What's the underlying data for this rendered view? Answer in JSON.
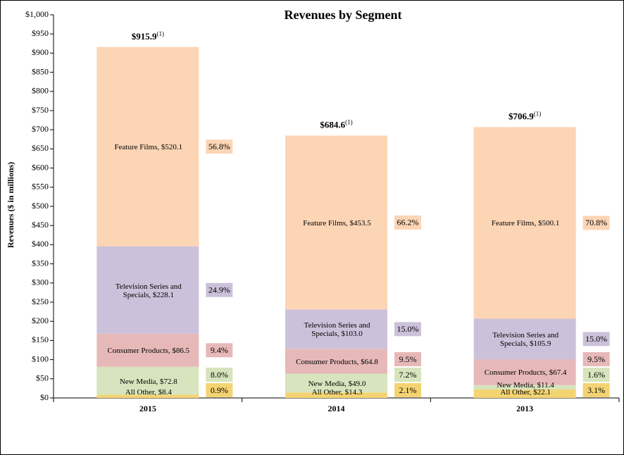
{
  "chart_data": {
    "type": "stacked_bar",
    "title": "Revenues by Segment",
    "ylabel": "Revenues ($ in millions)",
    "categories": [
      "2015",
      "2014",
      "2013"
    ],
    "ylim": [
      0,
      1000
    ],
    "yticks": [
      {
        "value": 0,
        "label": "$0"
      },
      {
        "value": 50,
        "label": "$50"
      },
      {
        "value": 100,
        "label": "$100"
      },
      {
        "value": 150,
        "label": "$150"
      },
      {
        "value": 200,
        "label": "$200"
      },
      {
        "value": 250,
        "label": "$250"
      },
      {
        "value": 300,
        "label": "$300"
      },
      {
        "value": 350,
        "label": "$350"
      },
      {
        "value": 400,
        "label": "$400"
      },
      {
        "value": 450,
        "label": "$450"
      },
      {
        "value": 500,
        "label": "$500"
      },
      {
        "value": 550,
        "label": "$550"
      },
      {
        "value": 600,
        "label": "$600"
      },
      {
        "value": 650,
        "label": "$650"
      },
      {
        "value": 700,
        "label": "$700"
      },
      {
        "value": 750,
        "label": "$750"
      },
      {
        "value": 800,
        "label": "$800"
      },
      {
        "value": 850,
        "label": "$850"
      },
      {
        "value": 900,
        "label": "$900"
      },
      {
        "value": 950,
        "label": "$950"
      },
      {
        "value": 1000,
        "label": "$1,000"
      }
    ],
    "series": [
      {
        "color": "#f4d472",
        "values": [
          8.4,
          14.3,
          22.1
        ],
        "value_labels": [
          "All Other, $8.4",
          "All Other, $14.3",
          "All Other, $22.1"
        ],
        "shares": [
          0.9,
          2.1,
          3.1
        ],
        "share_labels": [
          "0.9%",
          "2.1%",
          "3.1%"
        ]
      },
      {
        "color": "#d7e4bd",
        "values": [
          72.8,
          49.0,
          11.4
        ],
        "value_labels": [
          "New Media, $72.8",
          "New Media, $49.0",
          "New Media, $11.4"
        ],
        "shares": [
          8.0,
          7.2,
          1.6
        ],
        "share_labels": [
          "8.0%",
          "7.2%",
          "1.6%"
        ]
      },
      {
        "color": "#e6b9b8",
        "values": [
          86.5,
          64.8,
          67.4
        ],
        "value_labels": [
          "Consumer Products, $86.5",
          "Consumer Products, $64.8",
          "Consumer Products, $67.4"
        ],
        "shares": [
          9.4,
          9.5,
          9.5
        ],
        "share_labels": [
          "9.4%",
          "9.5%",
          "9.5%"
        ]
      },
      {
        "color": "#ccc1da",
        "values": [
          228.1,
          103.0,
          105.9
        ],
        "value_labels": [
          "Television Series and Specials, $228.1",
          "Television Series and Specials, $103.0",
          "Television Series and Specials, $105.9"
        ],
        "shares": [
          24.9,
          15.0,
          15.0
        ],
        "share_labels": [
          "24.9%",
          "15.0%",
          "15.0%"
        ]
      },
      {
        "color": "#fcd5b5",
        "values": [
          520.1,
          453.5,
          500.1
        ],
        "value_labels": [
          "Feature Films, $520.1",
          "Feature Films, $453.5",
          "Feature Films, $500.1"
        ],
        "shares": [
          56.8,
          66.2,
          70.8
        ],
        "share_labels": [
          "56.8%",
          "66.2%",
          "70.8%"
        ]
      }
    ],
    "totals": [
      915.9,
      684.6,
      706.9
    ],
    "total_labels": [
      "$915.9",
      "$684.6",
      "$706.9"
    ],
    "total_note": "(1)"
  }
}
